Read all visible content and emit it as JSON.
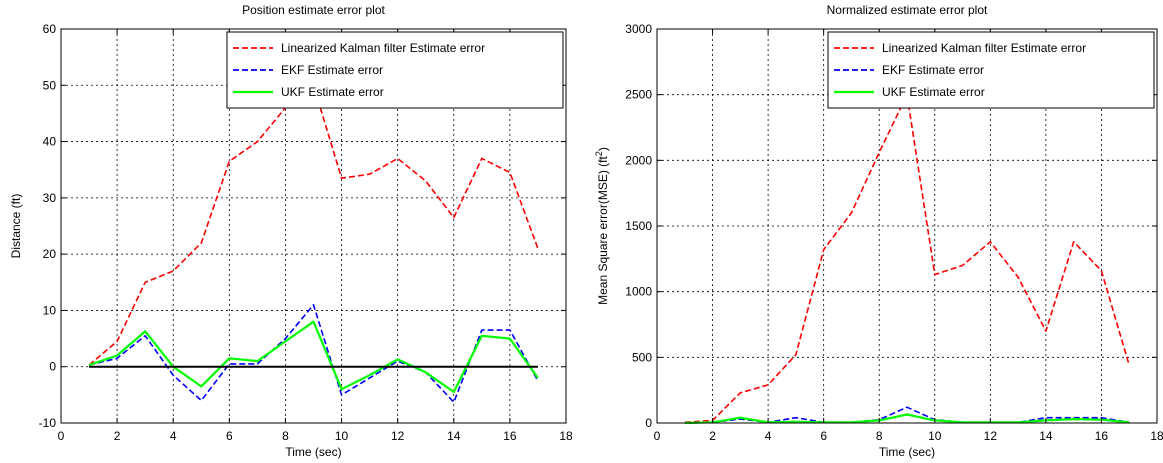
{
  "chart_data": [
    {
      "type": "line",
      "title": "Position estimate error plot",
      "xlabel": "Time (sec)",
      "ylabel": "Distance (ft)",
      "xlim": [
        0,
        18
      ],
      "ylim": [
        -10,
        60
      ],
      "xticks": [
        0,
        2,
        4,
        6,
        8,
        10,
        12,
        14,
        16,
        18
      ],
      "yticks": [
        -10,
        0,
        10,
        20,
        30,
        40,
        50,
        60
      ],
      "grid": true,
      "legend_position": "top-right",
      "zero_line": true,
      "series": [
        {
          "name": "Linearized Kalman filter Estimate error",
          "color": "#ff0000",
          "dash": "dashed",
          "x": [
            1,
            2,
            3,
            4,
            5,
            6,
            7,
            8,
            9,
            10,
            11,
            12,
            13,
            14,
            15,
            16,
            17
          ],
          "y": [
            0.3,
            4.5,
            15,
            17,
            22,
            36.5,
            40,
            46,
            50,
            33.5,
            34.2,
            37,
            33,
            26.5,
            37,
            34.5,
            21
          ]
        },
        {
          "name": "EKF Estimate error",
          "color": "#0000ff",
          "dash": "dashed",
          "x": [
            1,
            2,
            3,
            4,
            5,
            6,
            7,
            8,
            9,
            10,
            11,
            12,
            13,
            14,
            15,
            16,
            17
          ],
          "y": [
            0.3,
            1.5,
            5.5,
            -1.5,
            -6,
            0.5,
            0.5,
            5,
            11,
            -5,
            -2,
            1,
            -1,
            -6.3,
            6.5,
            6.5,
            -2.5
          ]
        },
        {
          "name": "UKF Estimate error",
          "color": "#00ff00",
          "dash": "solid",
          "x": [
            1,
            2,
            3,
            4,
            5,
            6,
            7,
            8,
            9,
            10,
            11,
            12,
            13,
            14,
            15,
            16,
            17
          ],
          "y": [
            0.3,
            2,
            6.3,
            0,
            -3.5,
            1.5,
            1,
            4.5,
            8,
            -4,
            -1.5,
            1.3,
            -1,
            -4.5,
            5.5,
            5,
            -2
          ]
        }
      ]
    },
    {
      "type": "line",
      "title": "Normalized estimate error plot",
      "xlabel": "Time (sec)",
      "ylabel_main": "Mean Square error(MSE) (ft",
      "ylabel_sup": "2",
      "ylabel_end": ")",
      "xlim": [
        0,
        18
      ],
      "ylim": [
        0,
        3000
      ],
      "xticks": [
        0,
        2,
        4,
        6,
        8,
        10,
        12,
        14,
        16,
        18
      ],
      "yticks": [
        0,
        500,
        1000,
        1500,
        2000,
        2500,
        3000
      ],
      "grid": true,
      "legend_position": "top-right",
      "zero_line": false,
      "series": [
        {
          "name": "Linearized Kalman filter Estimate error",
          "color": "#ff0000",
          "dash": "dashed",
          "x": [
            1,
            2,
            3,
            4,
            5,
            6,
            7,
            8,
            9,
            10,
            11,
            12,
            13,
            14,
            15,
            16,
            17
          ],
          "y": [
            5,
            20,
            230,
            290,
            520,
            1320,
            1600,
            2060,
            2500,
            1130,
            1200,
            1380,
            1110,
            700,
            1380,
            1160,
            440
          ]
        },
        {
          "name": "EKF Estimate error",
          "color": "#0000ff",
          "dash": "dashed",
          "x": [
            1,
            2,
            3,
            4,
            5,
            6,
            7,
            8,
            9,
            10,
            11,
            12,
            13,
            14,
            15,
            16,
            17
          ],
          "y": [
            0,
            5,
            30,
            5,
            40,
            5,
            5,
            25,
            120,
            25,
            5,
            5,
            5,
            40,
            40,
            40,
            5
          ]
        },
        {
          "name": "UKF Estimate error",
          "color": "#00ff00",
          "dash": "solid",
          "x": [
            1,
            2,
            3,
            4,
            5,
            6,
            7,
            8,
            9,
            10,
            11,
            12,
            13,
            14,
            15,
            16,
            17
          ],
          "y": [
            0,
            5,
            40,
            5,
            10,
            5,
            5,
            20,
            65,
            20,
            5,
            5,
            5,
            20,
            30,
            25,
            5
          ]
        }
      ]
    }
  ]
}
